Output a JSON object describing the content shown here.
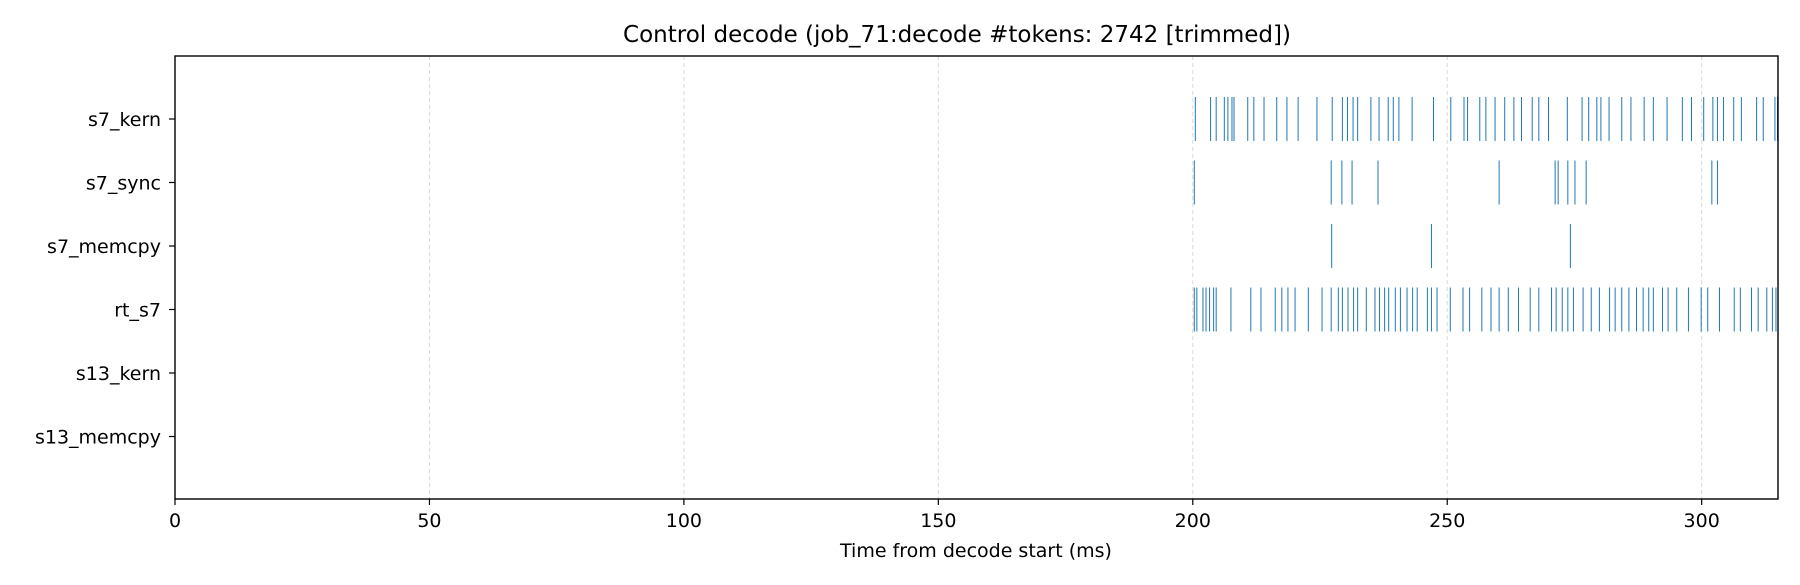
{
  "chart_data": {
    "type": "event-raster",
    "title": "Control decode (job_71:decode #tokens: 2742 [trimmed])",
    "xlabel": "Time from decode start (ms)",
    "ylabel": "",
    "xlim": [
      0,
      315
    ],
    "xticks": [
      0,
      50,
      100,
      150,
      200,
      250,
      300
    ],
    "grid": "x",
    "event_color": "#1f77b4",
    "lanes": [
      {
        "name": "s7_kern",
        "events": [
          200.5,
          203.5,
          204.6,
          206.2,
          206.9,
          207.7,
          208.1,
          210.8,
          212.0,
          214.0,
          216.5,
          218.5,
          220.7,
          224.4,
          227.4,
          229.4,
          230.4,
          231.5,
          232.4,
          235.0,
          236.6,
          238.4,
          239.4,
          240.5,
          243.1,
          247.3,
          250.7,
          253.3,
          254.0,
          256.4,
          257.6,
          259.4,
          261.3,
          263.1,
          264.6,
          266.7,
          268.0,
          269.9,
          273.6,
          276.5,
          277.8,
          279.4,
          280.2,
          281.8,
          284.3,
          286.1,
          288.7,
          290.5,
          293.2,
          296.2,
          298.0,
          300.4,
          302.2,
          303.1,
          304.3,
          306.3,
          307.8,
          310.8,
          312.1,
          314.4,
          314.9
        ]
      },
      {
        "name": "s7_sync",
        "events": [
          200.3,
          227.2,
          229.3,
          231.3,
          236.4,
          260.2,
          271.2,
          271.8,
          273.7,
          275.1,
          277.3,
          302.0,
          303.1
        ]
      },
      {
        "name": "s7_memcpy",
        "events": [
          227.3,
          246.9,
          274.2
        ]
      },
      {
        "name": "rt_s7",
        "events": [
          200.3,
          200.8,
          202.0,
          202.6,
          203.3,
          204.1,
          204.6,
          207.5,
          211.4,
          213.4,
          216.2,
          217.5,
          218.7,
          220.1,
          222.7,
          225.4,
          227.2,
          228.6,
          229.4,
          230.5,
          231.6,
          232.4,
          234.1,
          235.8,
          236.7,
          237.7,
          238.5,
          239.8,
          240.8,
          242.1,
          243.2,
          244.1,
          246.1,
          246.9,
          248.0,
          250.6,
          253.1,
          254.4,
          256.8,
          258.6,
          260.2,
          262.0,
          264.0,
          266.3,
          268.0,
          270.5,
          271.4,
          272.6,
          273.7,
          274.8,
          276.7,
          278.3,
          279.9,
          281.9,
          283.0,
          284.3,
          285.7,
          287.2,
          288.5,
          289.6,
          290.5,
          292.3,
          293.4,
          295.1,
          297.4,
          299.9,
          301.2,
          303.5,
          306.4,
          307.6,
          309.8,
          311.1,
          312.8,
          313.9,
          314.6
        ]
      },
      {
        "name": "s13_kern",
        "events": []
      },
      {
        "name": "s13_memcpy",
        "events": []
      }
    ]
  }
}
